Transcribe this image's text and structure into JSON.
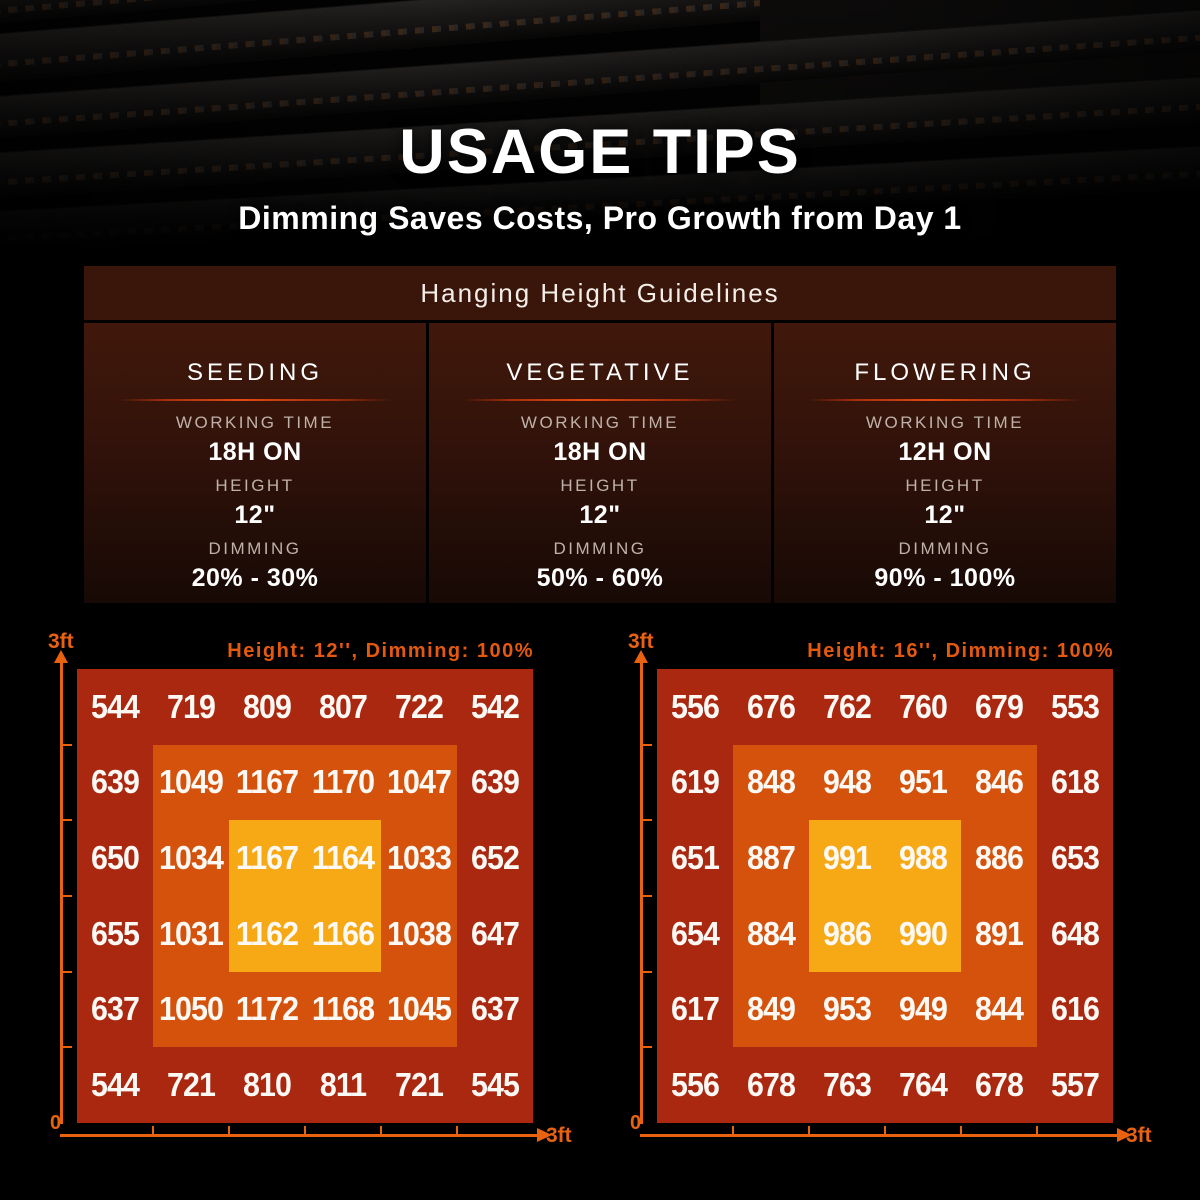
{
  "hero": {
    "title": "USAGE TIPS",
    "subtitle": "Dimming Saves Costs, Pro Growth from Day 1"
  },
  "guidelines": {
    "header": "Hanging Height Guidelines",
    "stages": [
      {
        "name": "SEEDING",
        "working_time_label": "WORKING TIME",
        "working_time": "18H ON",
        "height_label": "HEIGHT",
        "height": "12\"",
        "dimming_label": "DIMMING",
        "dimming": "20% - 30%"
      },
      {
        "name": "VEGETATIVE",
        "working_time_label": "WORKING TIME",
        "working_time": "18H ON",
        "height_label": "HEIGHT",
        "height": "12\"",
        "dimming_label": "DIMMING",
        "dimming": "50% - 60%"
      },
      {
        "name": "FLOWERING",
        "working_time_label": "WORKING TIME",
        "working_time": "12H ON",
        "height_label": "HEIGHT",
        "height": "12\"",
        "dimming_label": "DIMMING",
        "dimming": "90% - 100%"
      }
    ]
  },
  "chart_data": [
    {
      "type": "heatmap",
      "title": "Height: 12'', Dimming: 100%",
      "x_axis": {
        "min_label": "0",
        "max_label": "3ft",
        "range_ft": [
          0,
          3
        ]
      },
      "y_axis": {
        "max_label": "3ft",
        "range_ft": [
          0,
          3
        ]
      },
      "grid": "6x6 PPFD values, top row first",
      "values": [
        [
          544,
          719,
          809,
          807,
          722,
          542
        ],
        [
          639,
          1049,
          1167,
          1170,
          1047,
          639
        ],
        [
          650,
          1034,
          1167,
          1164,
          1033,
          652
        ],
        [
          655,
          1031,
          1162,
          1166,
          1038,
          647
        ],
        [
          637,
          1050,
          1172,
          1168,
          1045,
          637
        ],
        [
          544,
          721,
          810,
          811,
          721,
          545
        ]
      ],
      "zone_colors": {
        "outer": "#aa2710",
        "middle": "#d4520b",
        "center": "#f7a815"
      },
      "accent_color": "#e8620f",
      "legend": "none"
    },
    {
      "type": "heatmap",
      "title": "Height: 16'', Dimming: 100%",
      "x_axis": {
        "min_label": "0",
        "max_label": "3ft",
        "range_ft": [
          0,
          3
        ]
      },
      "y_axis": {
        "max_label": "3ft",
        "range_ft": [
          0,
          3
        ]
      },
      "grid": "6x6 PPFD values, top row first",
      "values": [
        [
          556,
          676,
          762,
          760,
          679,
          553
        ],
        [
          619,
          848,
          948,
          951,
          846,
          618
        ],
        [
          651,
          887,
          991,
          988,
          886,
          653
        ],
        [
          654,
          884,
          986,
          990,
          891,
          648
        ],
        [
          617,
          849,
          953,
          949,
          844,
          616
        ],
        [
          556,
          678,
          763,
          764,
          678,
          557
        ]
      ],
      "zone_colors": {
        "outer": "#aa2710",
        "middle": "#d4520b",
        "center": "#f7a815"
      },
      "accent_color": "#e8620f",
      "legend": "none"
    }
  ]
}
